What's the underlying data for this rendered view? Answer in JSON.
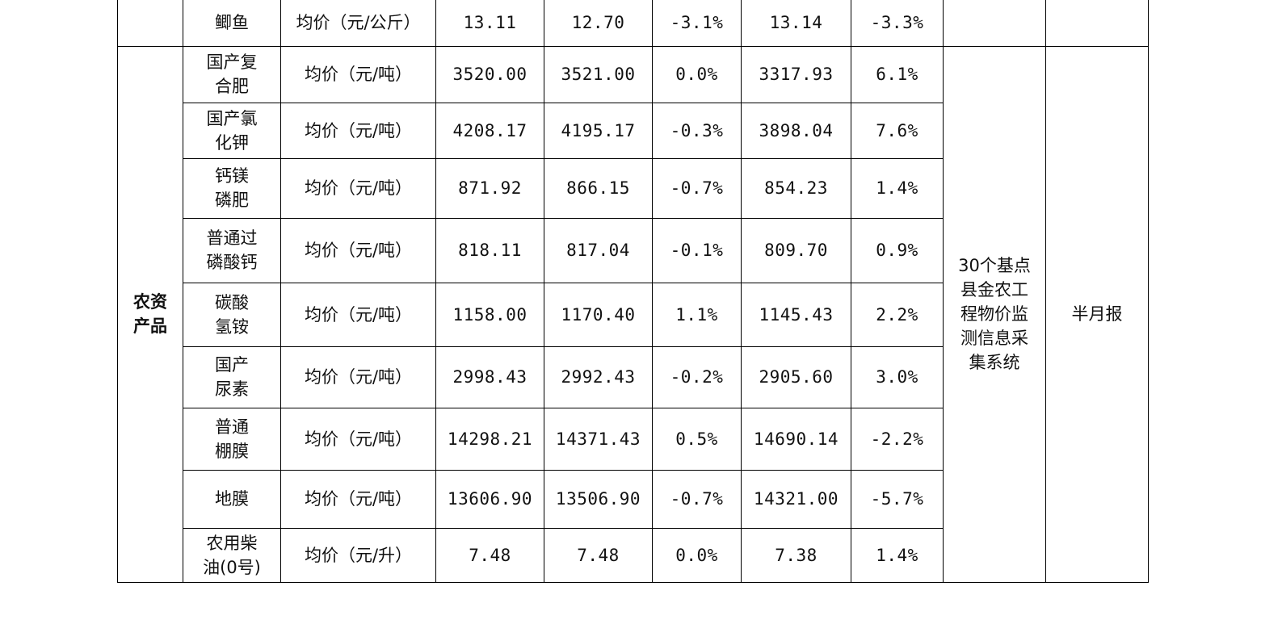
{
  "table": {
    "top_row": {
      "name": "鲫鱼",
      "unit": "均价（元/公斤）",
      "current": "13.11",
      "previous": "12.70",
      "change": "-3.1%",
      "last_year": "13.14",
      "yoy": "-3.3%"
    },
    "category": {
      "label_line1": "农资",
      "label_line2": "产品"
    },
    "source": {
      "line1": "30个基点",
      "line2": "县金农工",
      "line3": "程物价监",
      "line4": "测信息采",
      "line5": "集系统"
    },
    "frequency": "半月报",
    "rows": [
      {
        "name1": "国产复",
        "name2": "合肥",
        "unit": "均价（元/吨）",
        "current": "3520.00",
        "previous": "3521.00",
        "change": "0.0%",
        "last_year": "3317.93",
        "yoy": "6.1%"
      },
      {
        "name1": "国产氯",
        "name2": "化钾",
        "unit": "均价（元/吨）",
        "current": "4208.17",
        "previous": "4195.17",
        "change": "-0.3%",
        "last_year": "3898.04",
        "yoy": "7.6%"
      },
      {
        "name1": "钙镁",
        "name2": "磷肥",
        "unit": "均价（元/吨）",
        "current": "871.92",
        "previous": "866.15",
        "change": "-0.7%",
        "last_year": "854.23",
        "yoy": "1.4%"
      },
      {
        "name1": "普通过",
        "name2": "磷酸钙",
        "unit": "均价（元/吨）",
        "current": "818.11",
        "previous": "817.04",
        "change": "-0.1%",
        "last_year": "809.70",
        "yoy": "0.9%"
      },
      {
        "name1": "碳酸",
        "name2": "氢铵",
        "unit": "均价（元/吨）",
        "current": "1158.00",
        "previous": "1170.40",
        "change": "1.1%",
        "last_year": "1145.43",
        "yoy": "2.2%"
      },
      {
        "name1": "国产",
        "name2": "尿素",
        "unit": "均价（元/吨）",
        "current": "2998.43",
        "previous": "2992.43",
        "change": "-0.2%",
        "last_year": "2905.60",
        "yoy": "3.0%"
      },
      {
        "name1": "普通",
        "name2": "棚膜",
        "unit": "均价（元/吨）",
        "current": "14298.21",
        "previous": "14371.43",
        "change": "0.5%",
        "last_year": "14690.14",
        "yoy": "-2.2%"
      },
      {
        "name1": "地膜",
        "name2": "",
        "unit": "均价（元/吨）",
        "current": "13606.90",
        "previous": "13506.90",
        "change": "-0.7%",
        "last_year": "14321.00",
        "yoy": "-5.7%"
      },
      {
        "name1": "农用柴",
        "name2": "油(0号)",
        "unit": "均价（元/升）",
        "current": "7.48",
        "previous": "7.48",
        "change": "0.0%",
        "last_year": "7.38",
        "yoy": "1.4%"
      }
    ]
  }
}
